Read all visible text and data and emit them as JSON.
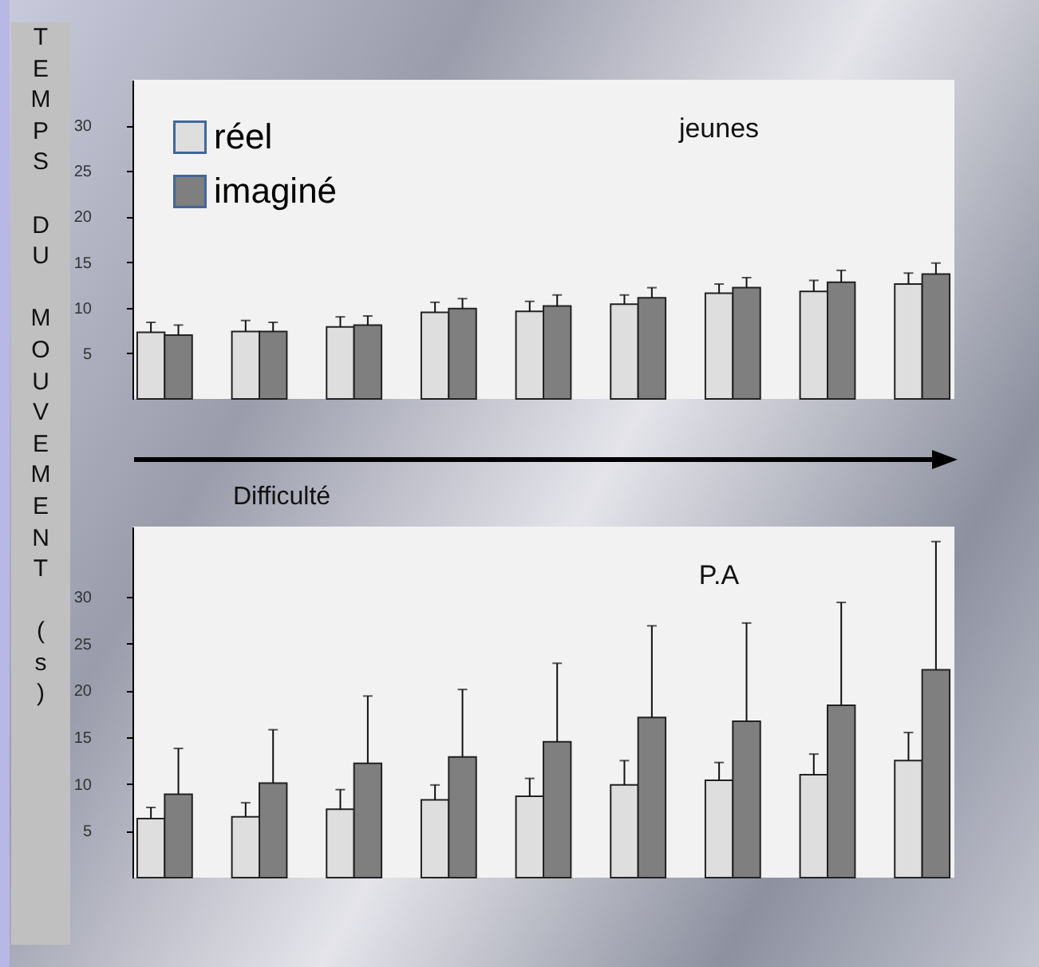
{
  "chart_data": [
    {
      "type": "bar",
      "title": "jeunes",
      "xlabel": "Difficulté",
      "ylabel": "TEMPS DU MOUVEMENT (s)",
      "categories": [
        null,
        null,
        null,
        null,
        null,
        null,
        null,
        null,
        null
      ],
      "ylim": [
        0,
        35
      ],
      "yticks": [
        5,
        10,
        15,
        20,
        25,
        30
      ],
      "tick_labels": "y",
      "legend": "top left",
      "grid": false,
      "series": [
        {
          "name": "réel",
          "color": "#dedede",
          "values": [
            7.3,
            7.4,
            7.9,
            9.5,
            9.6,
            10.4,
            11.6,
            11.8,
            12.6
          ],
          "errors": [
            [
              7.3,
              8.4
            ],
            [
              7.4,
              8.6
            ],
            [
              7.9,
              9.0
            ],
            [
              9.5,
              10.6
            ],
            [
              9.6,
              10.7
            ],
            [
              10.4,
              11.4
            ],
            [
              11.6,
              12.6
            ],
            [
              11.8,
              13.0
            ],
            [
              12.6,
              13.8
            ]
          ]
        },
        {
          "name": "imaginé",
          "color": "#7f7f7f",
          "values": [
            7.0,
            7.4,
            8.1,
            9.9,
            10.2,
            11.1,
            12.2,
            12.8,
            13.7
          ],
          "errors": [
            [
              7.0,
              8.1
            ],
            [
              7.4,
              8.4
            ],
            [
              8.1,
              9.1
            ],
            [
              9.9,
              11.0
            ],
            [
              10.2,
              11.4
            ],
            [
              11.1,
              12.2
            ],
            [
              12.2,
              13.3
            ],
            [
              12.8,
              14.1
            ],
            [
              13.7,
              14.9
            ]
          ]
        }
      ]
    },
    {
      "type": "bar",
      "title": "P.A",
      "categories": [
        null,
        null,
        null,
        null,
        null,
        null,
        null,
        null,
        null
      ],
      "ylim": [
        0,
        37.5
      ],
      "yticks": [
        5,
        10,
        15,
        20,
        25,
        30
      ],
      "tick_labels": "y",
      "grid": false,
      "series": [
        {
          "color": "#dedede",
          "values": [
            6.3,
            6.5,
            7.3,
            8.3,
            8.7,
            9.9,
            10.4,
            11.0,
            12.5
          ],
          "errors": [
            [
              6.3,
              7.5
            ],
            [
              6.5,
              8.0
            ],
            [
              7.3,
              9.4
            ],
            [
              8.3,
              9.9
            ],
            [
              8.7,
              10.6
            ],
            [
              9.9,
              12.5
            ],
            [
              10.4,
              12.3
            ],
            [
              11.0,
              13.2
            ],
            [
              12.5,
              15.5
            ]
          ]
        },
        {
          "color": "#7f7f7f",
          "values": [
            8.9,
            10.1,
            12.2,
            12.9,
            14.5,
            17.1,
            16.7,
            18.4,
            22.2
          ],
          "errors": [
            [
              8.9,
              13.8
            ],
            [
              10.1,
              15.8
            ],
            [
              12.2,
              19.4
            ],
            [
              12.9,
              20.1
            ],
            [
              14.5,
              22.9
            ],
            [
              17.1,
              26.9
            ],
            [
              16.7,
              27.2
            ],
            [
              18.4,
              29.4
            ],
            [
              22.2,
              35.9
            ]
          ]
        }
      ]
    }
  ]
}
